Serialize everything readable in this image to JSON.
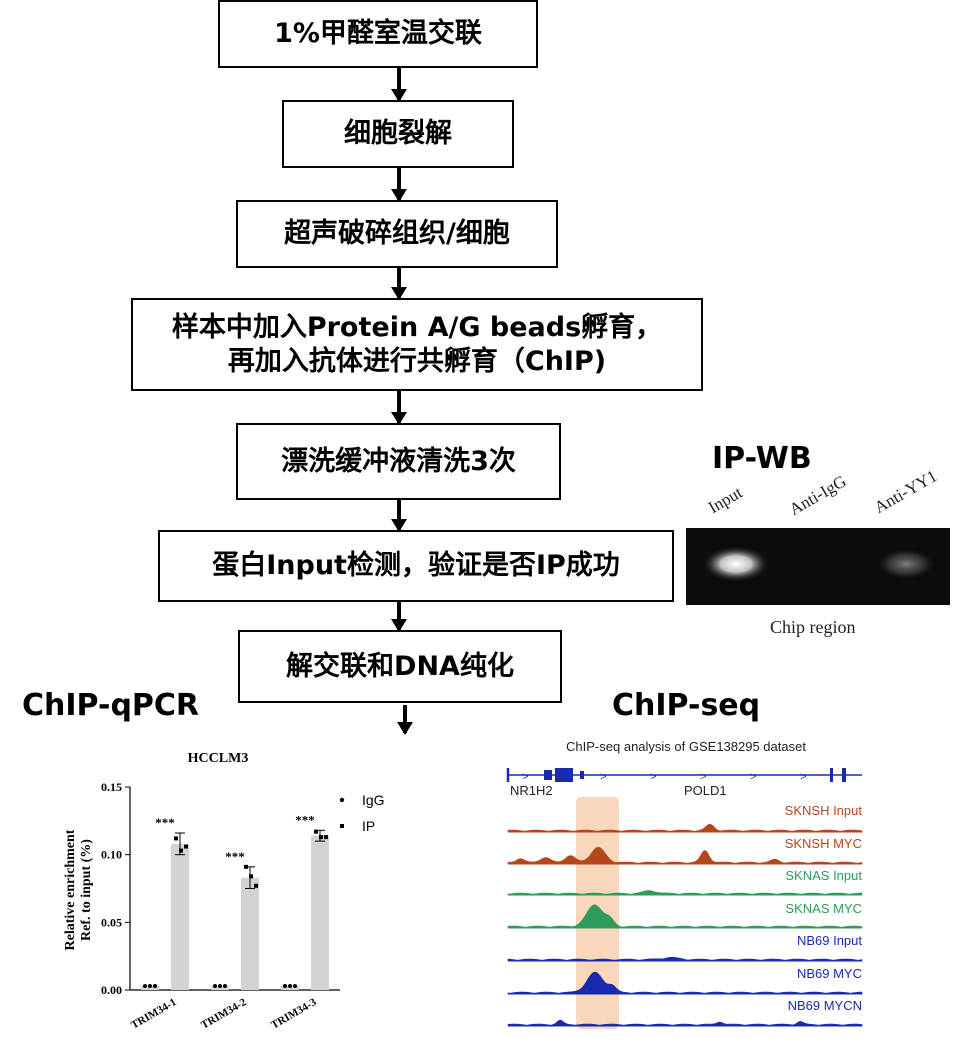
{
  "workflow": {
    "steps": [
      {
        "lines": [
          "1%甲醛室温交联"
        ]
      },
      {
        "lines": [
          "细胞裂解"
        ]
      },
      {
        "lines": [
          "超声破碎组织/细胞"
        ]
      },
      {
        "lines": [
          "样本中加入Protein A/G beads孵育，",
          "再加入抗体进行共孵育（ChIP)"
        ]
      },
      {
        "lines": [
          "漂洗缓冲液清洗3次"
        ]
      },
      {
        "lines": [
          "蛋白Input检测，验证是否IP成功"
        ]
      },
      {
        "lines": [
          "解交联和DNA纯化"
        ]
      }
    ]
  },
  "ipwb": {
    "title": "IP-WB",
    "lanes": [
      "Input",
      "Anti-IgG",
      "Anti-YY1"
    ],
    "caption": "Chip region"
  },
  "qpcr": {
    "section_title": "ChIP-qPCR",
    "chart_data": {
      "type": "bar",
      "title": "HCCLM3",
      "ylabel_line1": "Relative enrichment",
      "ylabel_line2": "Ref. to input (%)",
      "ylim": [
        0,
        0.15
      ],
      "yticks": [
        "0.00",
        "0.05",
        "0.10",
        "0.15"
      ],
      "categories": [
        "TRIM34-1",
        "TRIM34-2",
        "TRIM34-3"
      ],
      "series": [
        {
          "name": "IgG",
          "values": [
            0.003,
            0.003,
            0.003
          ],
          "points": [
            [
              0.003,
              0.003,
              0.003
            ],
            [
              0.003,
              0.003,
              0.003
            ],
            [
              0.003,
              0.003,
              0.003
            ]
          ]
        },
        {
          "name": "IP",
          "values": [
            0.108,
            0.083,
            0.114
          ],
          "err": [
            0.008,
            0.008,
            0.004
          ],
          "points": [
            [
              0.112,
              0.103,
              0.106
            ],
            [
              0.091,
              0.084,
              0.077
            ],
            [
              0.117,
              0.113,
              0.113
            ]
          ],
          "significance": [
            "***",
            "***",
            "***"
          ]
        }
      ],
      "legend": [
        "IgG",
        "IP"
      ],
      "legend_position": "top-right",
      "bar_color": "#d3d3d3"
    }
  },
  "chipseq": {
    "section_title": "ChIP-seq",
    "chart_data": {
      "type": "area",
      "title": "ChIP-seq analysis of GSE138295 dataset",
      "genes": [
        "NR1H2",
        "POLD1"
      ],
      "highlight_color": "#f6c9a6",
      "tracks": [
        {
          "name": "SKNSH Input",
          "color": "#b5461a"
        },
        {
          "name": "SKNSH MYC",
          "color": "#b5461a"
        },
        {
          "name": "SKNAS Input",
          "color": "#2e9a5c"
        },
        {
          "name": "SKNAS MYC",
          "color": "#2e9a5c"
        },
        {
          "name": "NB69 Input",
          "color": "#1a2ab0"
        },
        {
          "name": "NB69 MYC",
          "color": "#1a2ab0"
        },
        {
          "name": "NB69 MYCN",
          "color": "#1a2ab0"
        }
      ]
    }
  }
}
